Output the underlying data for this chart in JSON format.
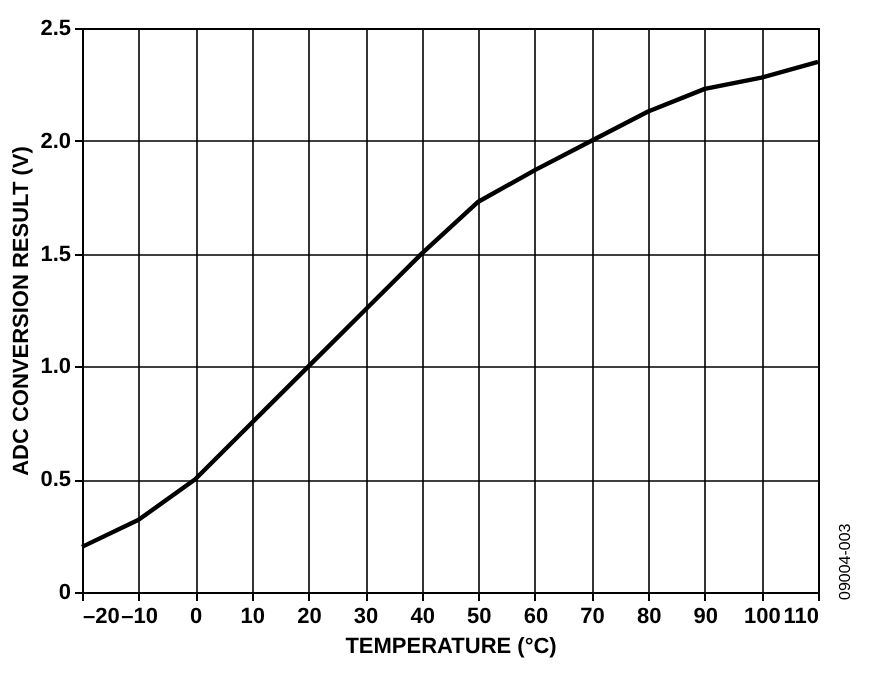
{
  "chart_data": {
    "type": "line",
    "xlabel": "TEMPERATURE (°C)",
    "ylabel": "ADC CONVERSION RESULT (V)",
    "x": [
      -20,
      -10,
      0,
      10,
      20,
      30,
      40,
      50,
      60,
      70,
      80,
      90,
      100,
      110
    ],
    "series": [
      {
        "color": "#000000",
        "values": [
          0.2,
          0.32,
          0.5,
          0.75,
          1.0,
          1.25,
          1.5,
          1.73,
          1.87,
          2.0,
          2.13,
          2.23,
          2.28,
          2.35
        ]
      }
    ],
    "xlim": [
      -20,
      110
    ],
    "xticks": [
      {
        "value": -20,
        "label": "–20"
      },
      {
        "value": -10,
        "label": "–10"
      },
      0,
      10,
      20,
      30,
      40,
      50,
      60,
      70,
      80,
      90,
      100,
      110
    ],
    "ylim": [
      0,
      2.5
    ],
    "yticks": [
      0,
      0.5,
      {
        "value": 1,
        "label": "1.0"
      },
      1.5,
      {
        "value": 2,
        "label": "2.0"
      },
      2.5
    ],
    "grid": true,
    "marker": "none",
    "line_style": "solid",
    "annotations": [
      "09004-003"
    ]
  }
}
